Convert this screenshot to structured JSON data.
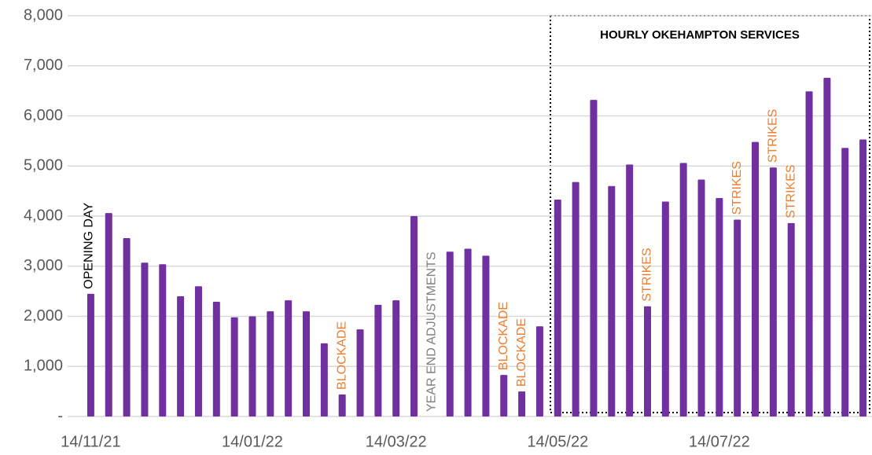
{
  "chart_data": {
    "type": "bar",
    "box_title": "HOURLY OKEHAMPTON SERVICES",
    "categories": [
      "14/11/21",
      null,
      null,
      null,
      null,
      null,
      null,
      null,
      null,
      "14/01/22",
      null,
      null,
      null,
      null,
      null,
      null,
      null,
      "14/03/22",
      null,
      null,
      null,
      null,
      null,
      null,
      null,
      null,
      "14/05/22",
      null,
      null,
      null,
      null,
      null,
      null,
      null,
      null,
      "14/07/22",
      null,
      null,
      null,
      null,
      null,
      null,
      null,
      null
    ],
    "values": [
      2450,
      4060,
      3560,
      3070,
      3040,
      2400,
      2600,
      2290,
      1980,
      2000,
      2100,
      2320,
      2100,
      1460,
      440,
      1740,
      2230,
      2320,
      4000,
      null,
      3290,
      3350,
      3210,
      830,
      500,
      1800,
      4330,
      4680,
      6320,
      4600,
      5030,
      2200,
      4290,
      5060,
      4730,
      4360,
      3930,
      5480,
      4970,
      3860,
      6490,
      6760,
      5360,
      5530
    ],
    "color": "#7030a0",
    "annotations": [
      {
        "text": "OPENING DAY",
        "index": 0,
        "color": "#000000"
      },
      {
        "text": "BLOCKADE",
        "index": 14,
        "color": "#ed7d31"
      },
      {
        "text": "YEAR END ADJUSTMENTS",
        "index": 19,
        "color": "#7f7f7f"
      },
      {
        "text": "BLOCKADE",
        "index": 23,
        "color": "#ed7d31"
      },
      {
        "text": "BLOCKADE",
        "index": 24,
        "color": "#ed7d31"
      },
      {
        "text": "STRIKES",
        "index": 31,
        "color": "#ed7d31"
      },
      {
        "text": "STRIKES",
        "index": 36,
        "color": "#ed7d31"
      },
      {
        "text": "STRIKES",
        "index": 38,
        "color": "#ed7d31"
      },
      {
        "text": "STRIKES",
        "index": 39,
        "color": "#ed7d31"
      }
    ],
    "ylim": [
      0,
      8000
    ],
    "yticks": [
      {
        "value": 0,
        "label": "-"
      },
      {
        "value": 1000,
        "label": "1,000"
      },
      {
        "value": 2000,
        "label": "2,000"
      },
      {
        "value": 3000,
        "label": "3,000"
      },
      {
        "value": 4000,
        "label": "4,000"
      },
      {
        "value": 5000,
        "label": "5,000"
      },
      {
        "value": 6000,
        "label": "6,000"
      },
      {
        "value": 7000,
        "label": "7,000"
      },
      {
        "value": 8000,
        "label": "8,000"
      }
    ],
    "grid": true
  }
}
